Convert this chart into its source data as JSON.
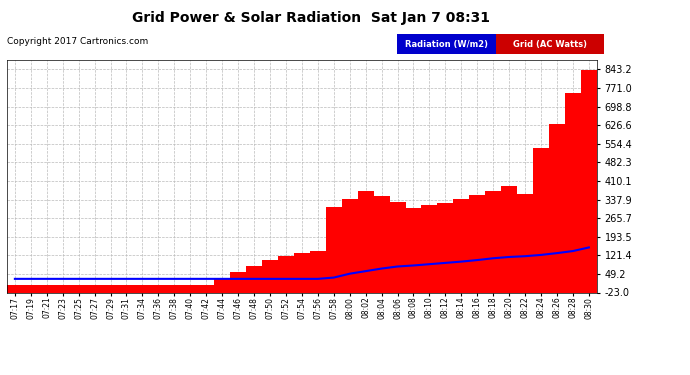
{
  "title": "Grid Power & Solar Radiation  Sat Jan 7 08:31",
  "copyright": "Copyright 2017 Cartronics.com",
  "yticks": [
    843.2,
    771.0,
    698.8,
    626.6,
    554.4,
    482.3,
    410.1,
    337.9,
    265.7,
    193.5,
    121.4,
    49.2,
    -23.0
  ],
  "ymin": -23.0,
  "ymax": 880.0,
  "bg_color": "#ffffff",
  "grid_color": "#bbbbbb",
  "bar_color": "#ff0000",
  "line_color": "#0000ff",
  "legend_radiation_bg": "#0000cc",
  "legend_grid_bg": "#cc0000",
  "xtick_labels": [
    "07:17",
    "07:19",
    "07:21",
    "07:23",
    "07:25",
    "07:27",
    "07:29",
    "07:31",
    "07:34",
    "07:36",
    "07:38",
    "07:40",
    "07:42",
    "07:44",
    "07:46",
    "07:48",
    "07:50",
    "07:52",
    "07:54",
    "07:56",
    "07:58",
    "08:00",
    "08:02",
    "08:04",
    "08:06",
    "08:08",
    "08:10",
    "08:12",
    "08:14",
    "08:16",
    "08:18",
    "08:20",
    "08:22",
    "08:24",
    "08:26",
    "08:28",
    "08:30"
  ],
  "grid_values": [
    5,
    5,
    5,
    5,
    5,
    5,
    5,
    5,
    5,
    5,
    5,
    5,
    5,
    30,
    55,
    80,
    105,
    120,
    130,
    140,
    310,
    340,
    370,
    350,
    330,
    305,
    315,
    325,
    340,
    355,
    370,
    390,
    360,
    540,
    630,
    750,
    843
  ],
  "radiation_values": [
    30,
    30,
    30,
    30,
    30,
    30,
    30,
    30,
    30,
    30,
    30,
    30,
    30,
    30,
    30,
    30,
    30,
    30,
    30,
    30,
    35,
    50,
    60,
    70,
    78,
    82,
    87,
    92,
    97,
    103,
    110,
    115,
    118,
    123,
    130,
    138,
    152
  ]
}
